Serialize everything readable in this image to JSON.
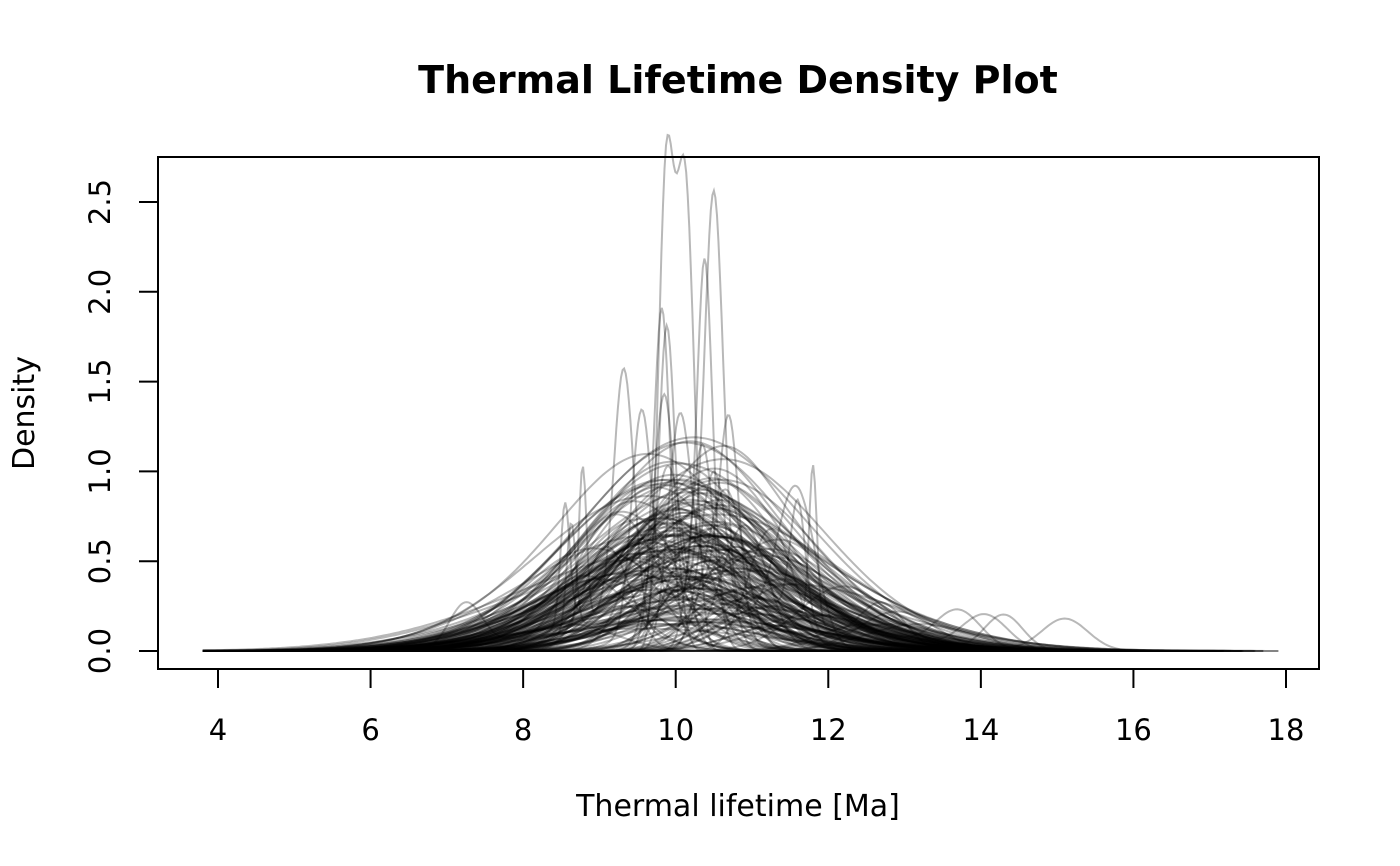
{
  "chart_data": {
    "type": "line",
    "title": "Thermal Lifetime Density Plot",
    "xlabel": "Thermal lifetime [Ma]",
    "ylabel": "Density",
    "xlim": [
      3.8,
      17.9
    ],
    "ylim": [
      0,
      2.65
    ],
    "x_ticks": [
      "4",
      "6",
      "8",
      "10",
      "12",
      "14",
      "16",
      "18"
    ],
    "x_tick_values": [
      4,
      6,
      8,
      10,
      12,
      14,
      16,
      18
    ],
    "y_ticks": [
      "0.0",
      "0.5",
      "1.0",
      "1.5",
      "2.0",
      "2.5"
    ],
    "y_tick_values": [
      0,
      0.5,
      1.0,
      1.5,
      2.0,
      2.5
    ],
    "grid": false,
    "legend": "none",
    "line_color": "#000000",
    "line_alpha": 0.28,
    "series_description": "approximately 200 overlaid kernel density curves",
    "series": [
      {
        "peaks": [
          [
            10.12,
            2.62,
            0.12
          ],
          [
            9.87,
            2.5,
            0.1
          ]
        ]
      },
      {
        "peaks": [
          [
            10.5,
            2.24,
            0.12
          ],
          [
            10.3,
            0.35,
            0.5
          ]
        ]
      },
      {
        "peaks": [
          [
            10.38,
            1.94,
            0.1
          ],
          [
            10.0,
            0.3,
            0.6
          ]
        ]
      },
      {
        "peaks": [
          [
            9.82,
            1.7,
            0.1
          ],
          [
            9.4,
            0.3,
            0.5
          ]
        ]
      },
      {
        "peaks": [
          [
            9.88,
            1.58,
            0.1
          ],
          [
            10.3,
            0.4,
            0.4
          ]
        ]
      },
      {
        "peaks": [
          [
            9.85,
            1.43,
            0.14
          ]
        ]
      },
      {
        "peaks": [
          [
            9.32,
            1.4,
            0.13
          ],
          [
            9.0,
            0.2,
            0.6
          ]
        ]
      },
      {
        "peaks": [
          [
            9.55,
            1.18,
            0.13
          ],
          [
            10.1,
            0.3,
            0.5
          ]
        ]
      },
      {
        "peaks": [
          [
            10.05,
            1.23,
            0.15
          ],
          [
            10.6,
            0.5,
            0.3
          ]
        ]
      },
      {
        "peaks": [
          [
            10.35,
            1.15,
            0.15
          ]
        ]
      },
      {
        "peaks": [
          [
            10.7,
            1.13,
            0.13
          ],
          [
            10.2,
            0.4,
            0.4
          ]
        ]
      },
      {
        "peaks": [
          [
            9.9,
            1.03,
            0.2
          ]
        ]
      },
      {
        "peaks": [
          [
            10.5,
            1.0,
            0.18
          ]
        ]
      },
      {
        "peaks": [
          [
            10.65,
            0.9,
            0.25
          ]
        ]
      },
      {
        "peaks": [
          [
            8.78,
            0.86,
            0.05
          ],
          [
            9.3,
            0.25,
            0.6
          ]
        ]
      },
      {
        "peaks": [
          [
            11.8,
            0.86,
            0.05
          ],
          [
            11.3,
            0.25,
            0.6
          ]
        ]
      },
      {
        "peaks": [
          [
            11.58,
            0.86,
            0.25
          ],
          [
            10.8,
            0.2,
            0.5
          ]
        ]
      },
      {
        "peaks": [
          [
            8.55,
            0.66,
            0.06
          ],
          [
            9.2,
            0.3,
            0.6
          ]
        ]
      },
      {
        "peaks": [
          [
            8.63,
            0.6,
            0.06
          ],
          [
            9.5,
            0.25,
            0.7
          ]
        ]
      },
      {
        "peaks": [
          [
            11.6,
            0.66,
            0.1
          ],
          [
            11.0,
            0.3,
            0.6
          ]
        ]
      },
      {
        "peaks": [
          [
            11.25,
            0.68,
            0.3
          ]
        ]
      },
      {
        "peaks": [
          [
            10.9,
            0.7,
            0.3
          ]
        ]
      },
      {
        "peaks": [
          [
            9.7,
            0.68,
            0.35
          ]
        ]
      },
      {
        "peaks": [
          [
            10.2,
            0.62,
            0.3
          ]
        ]
      },
      {
        "peaks": [
          [
            9.5,
            0.6,
            0.55
          ]
        ]
      },
      {
        "peaks": [
          [
            10.8,
            0.58,
            0.45
          ]
        ]
      },
      {
        "peaks": [
          [
            10.1,
            0.55,
            0.6
          ]
        ]
      },
      {
        "peaks": [
          [
            9.3,
            0.52,
            0.5
          ]
        ]
      },
      {
        "peaks": [
          [
            9.1,
            0.58,
            0.3
          ]
        ]
      },
      {
        "peaks": [
          [
            10.4,
            0.5,
            0.5
          ]
        ]
      },
      {
        "peaks": [
          [
            12.2,
            0.36,
            0.6
          ]
        ]
      },
      {
        "peaks": [
          [
            11.4,
            0.4,
            0.7
          ]
        ]
      },
      {
        "peaks": [
          [
            8.8,
            0.42,
            0.6
          ]
        ]
      },
      {
        "peaks": [
          [
            9.0,
            0.4,
            0.9
          ]
        ]
      },
      {
        "peaks": [
          [
            10.3,
            0.35,
            0.9
          ]
        ]
      },
      {
        "peaks": [
          [
            7.25,
            0.26,
            0.22
          ],
          [
            8.6,
            0.15,
            0.6
          ]
        ]
      },
      {
        "peaks": [
          [
            15.1,
            0.18,
            0.3
          ],
          [
            12.8,
            0.15,
            0.7
          ]
        ]
      },
      {
        "peaks": [
          [
            14.3,
            0.2,
            0.25
          ],
          [
            12.0,
            0.2,
            0.8
          ]
        ]
      },
      {
        "peaks": [
          [
            13.7,
            0.22,
            0.3
          ],
          [
            11.8,
            0.2,
            0.8
          ]
        ]
      },
      {
        "peaks": [
          [
            14.05,
            0.2,
            0.3
          ],
          [
            12.5,
            0.15,
            0.6
          ]
        ]
      },
      {
        "peaks": [
          [
            12.7,
            0.26,
            0.3
          ],
          [
            11.2,
            0.25,
            0.6
          ]
        ]
      },
      {
        "peaks": [
          [
            12.9,
            0.22,
            0.5
          ]
        ]
      },
      {
        "peaks": [
          [
            13.2,
            0.15,
            0.7
          ]
        ]
      }
    ]
  }
}
